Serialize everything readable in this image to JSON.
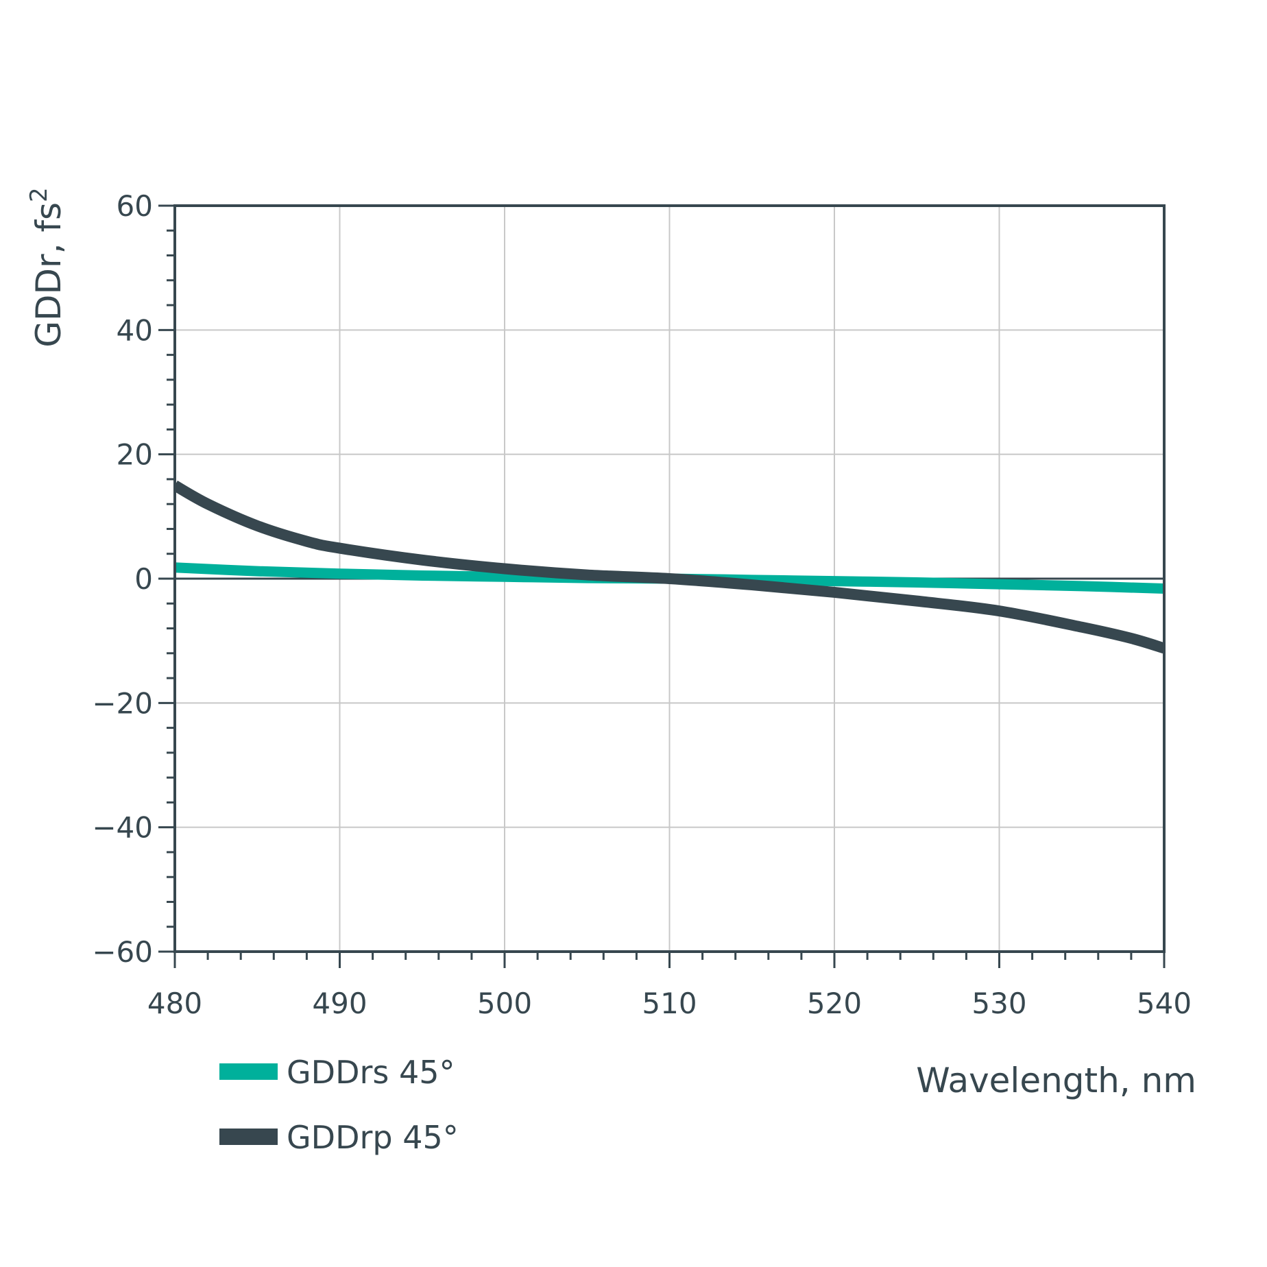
{
  "chart_data": {
    "type": "line",
    "xlabel": "Wavelength, nm",
    "ylabel": "GDDr, fs",
    "ylabel_superscript": "2",
    "xlim": [
      480,
      540
    ],
    "ylim": [
      -60,
      60
    ],
    "x_ticks": [
      480,
      490,
      500,
      510,
      520,
      530,
      540
    ],
    "y_ticks": [
      60,
      40,
      20,
      0,
      -20,
      -40,
      -60
    ],
    "x_tick_labels": [
      "480",
      "490",
      "500",
      "510",
      "520",
      "530",
      "540"
    ],
    "y_tick_labels": [
      "60",
      "40",
      "20",
      "0",
      "−20",
      "−40",
      "−60"
    ],
    "grid": true,
    "legend_position": "bottom-left",
    "series": [
      {
        "name": "GDDrs 45°",
        "color": "#00b09b",
        "x": [
          480,
          485,
          490,
          495,
          500,
          505,
          510,
          515,
          520,
          525,
          530,
          535,
          540
        ],
        "y": [
          1.8,
          1.2,
          0.8,
          0.5,
          0.3,
          0.1,
          0.0,
          -0.2,
          -0.4,
          -0.6,
          -0.9,
          -1.2,
          -1.6
        ]
      },
      {
        "name": "GDDrp 45°",
        "color": "#37474f",
        "x": [
          480,
          482,
          485,
          488,
          490,
          495,
          500,
          505,
          510,
          515,
          520,
          525,
          530,
          535,
          538,
          540
        ],
        "y": [
          15,
          12,
          8.5,
          6,
          4.9,
          3.0,
          1.6,
          0.6,
          0.0,
          -1.0,
          -2.2,
          -3.6,
          -5.2,
          -7.8,
          -9.6,
          -11.2
        ]
      }
    ]
  }
}
